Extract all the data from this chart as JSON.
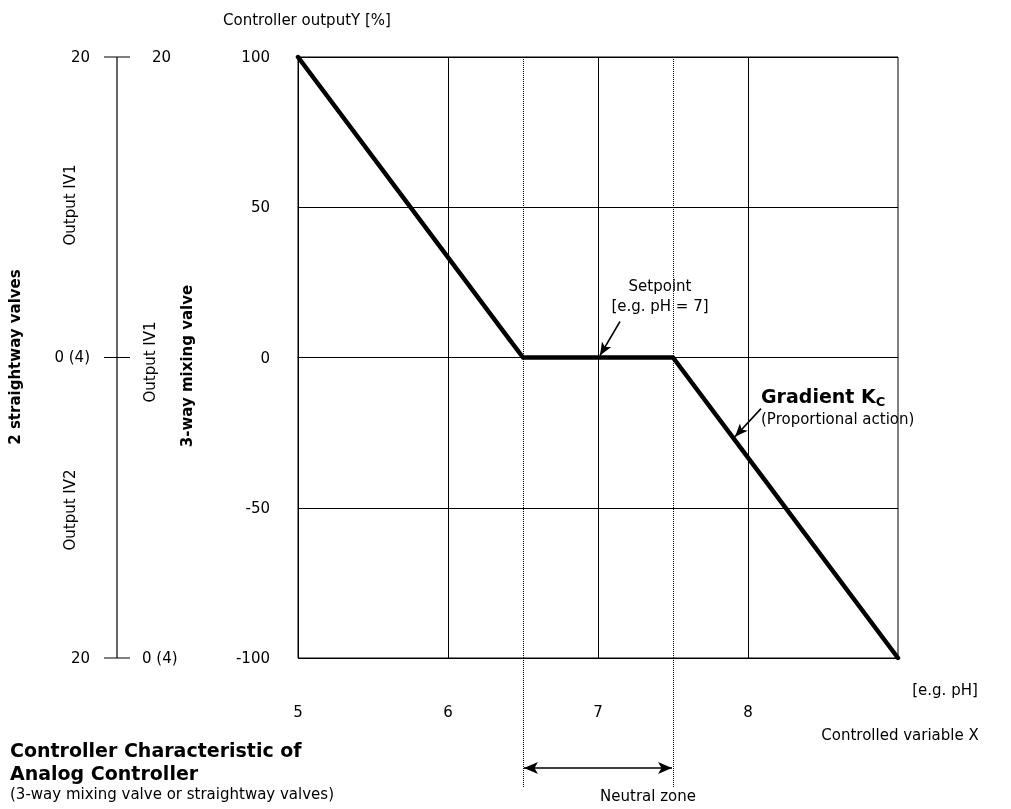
{
  "chart_data": {
    "type": "line",
    "title": "Controller Characteristic of Analog Controller",
    "subtitle": "(3-way mixing valve or straightway valves)",
    "xlabel": "Controlled variable X",
    "ylabel": "Controller outputY [%]",
    "x": [
      5,
      6.5,
      7.5,
      9
    ],
    "series": [
      {
        "color": "#000000",
        "values": [
          100,
          0,
          0,
          -100
        ]
      }
    ],
    "xlim": [
      5,
      9
    ],
    "xticks": [
      5,
      6,
      7,
      8
    ],
    "ylim": [
      -100,
      100
    ],
    "yticks": [
      -100,
      -50,
      0,
      50,
      100
    ],
    "ref_lines": [
      {
        "axis": "x",
        "value": 6.5,
        "line_style": "dotted"
      },
      {
        "axis": "x",
        "value": 7.5,
        "line_style": "dotted"
      }
    ],
    "annotations": [
      {
        "text": "Setpoint\n[e.g. pH = 7]",
        "x": 7,
        "y": 0
      },
      {
        "text": "Gradient K$_{C}$\n(Proportional action)",
        "x": 7.9,
        "y": -27
      },
      "[e.g. pH]",
      "Neutral zone",
      "2 straightway valves",
      "Output IV1",
      "Output IV2",
      "20",
      "0 (4)",
      "20",
      "3-way mixing valve",
      "Output IV1",
      "20",
      "0 (4)"
    ],
    "grid": true,
    "marker": "none",
    "line_style": "solid"
  }
}
